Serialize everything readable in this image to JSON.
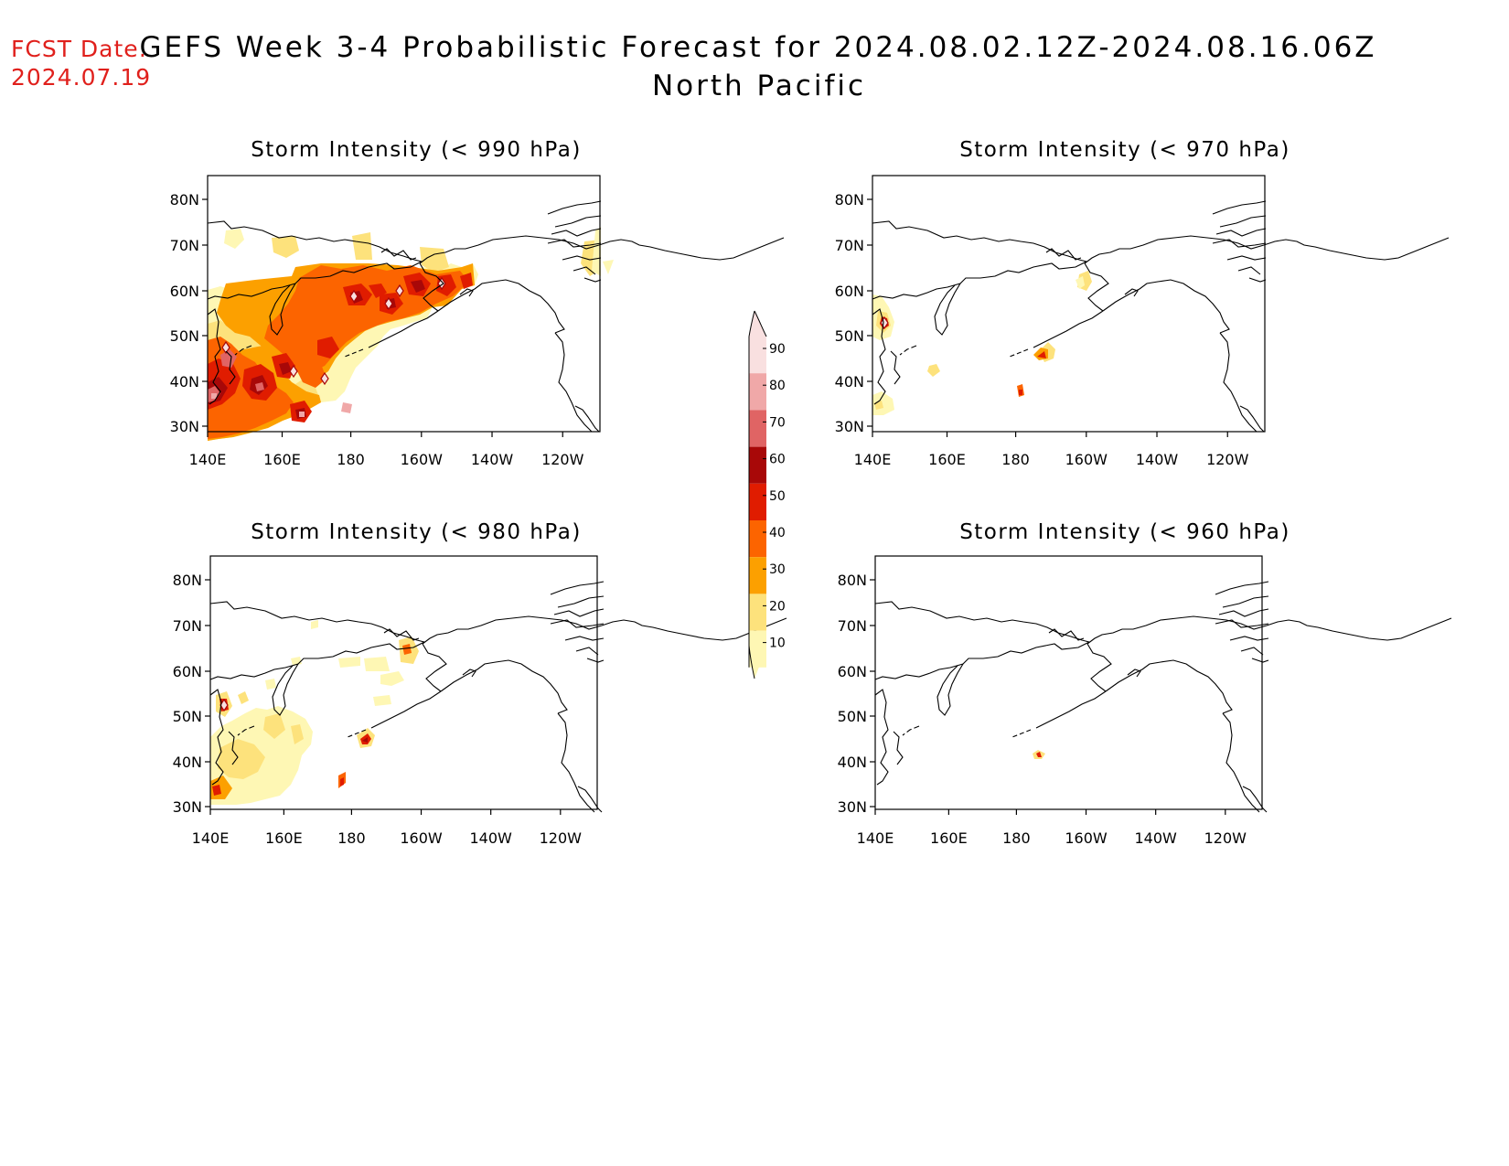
{
  "header": {
    "fcst_date_label": "FCST Date:",
    "fcst_date_value": "2024.07.19",
    "title": "GEFS Week 3-4 Probabilistic Forecast for 2024.08.02.12Z-2024.08.16.06Z",
    "subtitle": "North Pacific"
  },
  "map_axes": {
    "lat_labels": [
      "80N",
      "70N",
      "60N",
      "50N",
      "40N",
      "30N"
    ],
    "lon_labels": [
      "140E",
      "160E",
      "180",
      "160W",
      "140W",
      "120W"
    ]
  },
  "panels": [
    {
      "id": "p990",
      "title": "Storm Intensity (< 990 hPa)"
    },
    {
      "id": "p970",
      "title": "Storm Intensity (< 970 hPa)"
    },
    {
      "id": "p980",
      "title": "Storm Intensity (< 980 hPa)"
    },
    {
      "id": "p960",
      "title": "Storm Intensity (< 960 hPa)"
    }
  ],
  "colorbar": {
    "labels": [
      "90",
      "80",
      "70",
      "60",
      "50",
      "40",
      "30",
      "20",
      "10"
    ],
    "colors": [
      "#f9e0e0",
      "#f0a8a8",
      "#e06464",
      "#a80808",
      "#e01c00",
      "#fc6400",
      "#fca000",
      "#fde27c",
      "#fef7b4"
    ]
  },
  "colors": {
    "date_red": "#e0201c",
    "p10": "#fef7b4",
    "p20": "#fde27c",
    "p30": "#fca000",
    "p40": "#fc6400",
    "p50": "#e01c00",
    "p60": "#a80808",
    "p70": "#e06464",
    "p80": "#f0a8a8"
  }
}
